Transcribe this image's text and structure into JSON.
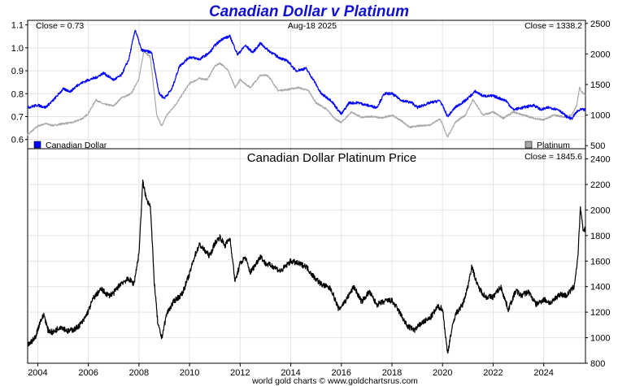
{
  "chart_data": {
    "type": "line",
    "title": "Canadian Dollar v Platinum",
    "date_label": "Aug-18  2025",
    "footer": "world gold charts © www.goldchartsrus.com",
    "colors": {
      "title": "#1010d0",
      "cad": "#0000ff",
      "platinum": "#a8a8a8",
      "ratio": "#000000",
      "grid": "#e4e4e4"
    },
    "x_ticks": [
      "2004",
      "2006",
      "2008",
      "2010",
      "2012",
      "2014",
      "2016",
      "2018",
      "2020",
      "2022",
      "2024"
    ],
    "x_range": [
      2003.6,
      2025.65
    ],
    "top_panel": {
      "close_left": "Close = 0.73",
      "close_right": "Close = 1338.2",
      "left_axis": {
        "range": [
          0.56,
          1.12
        ],
        "ticks": [
          "0.6",
          "0.7",
          "0.8",
          "0.9",
          "1.0",
          "1.1"
        ]
      },
      "right_axis": {
        "range": [
          450,
          2550
        ],
        "ticks": [
          "500",
          "1000",
          "1500",
          "2000",
          "2500"
        ]
      },
      "legend_left": "Canadian Dollar",
      "legend_right": "Platinum",
      "series": [
        {
          "name": "Canadian Dollar",
          "axis": "left",
          "points": [
            [
              2003.6,
              0.74
            ],
            [
              2004.0,
              0.75
            ],
            [
              2004.3,
              0.74
            ],
            [
              2004.6,
              0.77
            ],
            [
              2005.0,
              0.82
            ],
            [
              2005.3,
              0.81
            ],
            [
              2005.6,
              0.84
            ],
            [
              2006.0,
              0.86
            ],
            [
              2006.3,
              0.87
            ],
            [
              2006.6,
              0.89
            ],
            [
              2007.0,
              0.86
            ],
            [
              2007.3,
              0.88
            ],
            [
              2007.6,
              0.95
            ],
            [
              2007.85,
              1.08
            ],
            [
              2008.1,
              0.99
            ],
            [
              2008.5,
              0.98
            ],
            [
              2008.8,
              0.8
            ],
            [
              2009.0,
              0.78
            ],
            [
              2009.3,
              0.82
            ],
            [
              2009.6,
              0.92
            ],
            [
              2010.0,
              0.96
            ],
            [
              2010.4,
              0.95
            ],
            [
              2010.8,
              0.98
            ],
            [
              2011.0,
              1.01
            ],
            [
              2011.3,
              1.04
            ],
            [
              2011.6,
              1.05
            ],
            [
              2011.9,
              0.97
            ],
            [
              2012.2,
              1.01
            ],
            [
              2012.5,
              0.98
            ],
            [
              2012.8,
              1.02
            ],
            [
              2013.1,
              0.99
            ],
            [
              2013.5,
              0.96
            ],
            [
              2013.9,
              0.94
            ],
            [
              2014.2,
              0.9
            ],
            [
              2014.6,
              0.91
            ],
            [
              2014.9,
              0.86
            ],
            [
              2015.2,
              0.8
            ],
            [
              2015.6,
              0.77
            ],
            [
              2016.0,
              0.71
            ],
            [
              2016.3,
              0.76
            ],
            [
              2016.7,
              0.76
            ],
            [
              2017.0,
              0.75
            ],
            [
              2017.4,
              0.74
            ],
            [
              2017.7,
              0.8
            ],
            [
              2018.0,
              0.8
            ],
            [
              2018.4,
              0.77
            ],
            [
              2018.8,
              0.76
            ],
            [
              2019.0,
              0.74
            ],
            [
              2019.5,
              0.76
            ],
            [
              2019.9,
              0.77
            ],
            [
              2020.2,
              0.7
            ],
            [
              2020.5,
              0.74
            ],
            [
              2020.9,
              0.77
            ],
            [
              2021.3,
              0.81
            ],
            [
              2021.6,
              0.79
            ],
            [
              2022.0,
              0.79
            ],
            [
              2022.5,
              0.77
            ],
            [
              2022.8,
              0.73
            ],
            [
              2023.2,
              0.74
            ],
            [
              2023.6,
              0.75
            ],
            [
              2023.9,
              0.73
            ],
            [
              2024.2,
              0.74
            ],
            [
              2024.6,
              0.73
            ],
            [
              2024.9,
              0.7
            ],
            [
              2025.1,
              0.69
            ],
            [
              2025.3,
              0.72
            ],
            [
              2025.45,
              0.73
            ],
            [
              2025.65,
              0.73
            ]
          ]
        },
        {
          "name": "Platinum",
          "axis": "right",
          "points": [
            [
              2003.6,
              680
            ],
            [
              2004.0,
              820
            ],
            [
              2004.3,
              860
            ],
            [
              2004.6,
              830
            ],
            [
              2005.0,
              860
            ],
            [
              2005.4,
              880
            ],
            [
              2005.8,
              950
            ],
            [
              2006.0,
              1030
            ],
            [
              2006.3,
              1250
            ],
            [
              2006.6,
              1180
            ],
            [
              2007.0,
              1150
            ],
            [
              2007.3,
              1280
            ],
            [
              2007.7,
              1350
            ],
            [
              2008.0,
              1600
            ],
            [
              2008.2,
              2050
            ],
            [
              2008.45,
              1950
            ],
            [
              2008.7,
              1000
            ],
            [
              2008.9,
              820
            ],
            [
              2009.1,
              1000
            ],
            [
              2009.5,
              1200
            ],
            [
              2010.0,
              1520
            ],
            [
              2010.4,
              1600
            ],
            [
              2010.7,
              1580
            ],
            [
              2011.0,
              1800
            ],
            [
              2011.2,
              1850
            ],
            [
              2011.5,
              1750
            ],
            [
              2011.8,
              1450
            ],
            [
              2012.0,
              1580
            ],
            [
              2012.4,
              1450
            ],
            [
              2012.8,
              1650
            ],
            [
              2013.1,
              1650
            ],
            [
              2013.5,
              1400
            ],
            [
              2013.9,
              1420
            ],
            [
              2014.3,
              1450
            ],
            [
              2014.7,
              1400
            ],
            [
              2015.0,
              1200
            ],
            [
              2015.4,
              1100
            ],
            [
              2015.8,
              920
            ],
            [
              2016.0,
              880
            ],
            [
              2016.4,
              1050
            ],
            [
              2016.8,
              960
            ],
            [
              2017.2,
              980
            ],
            [
              2017.6,
              950
            ],
            [
              2018.0,
              1000
            ],
            [
              2018.4,
              900
            ],
            [
              2018.7,
              800
            ],
            [
              2019.0,
              820
            ],
            [
              2019.5,
              840
            ],
            [
              2019.9,
              940
            ],
            [
              2020.2,
              640
            ],
            [
              2020.5,
              880
            ],
            [
              2020.9,
              1000
            ],
            [
              2021.2,
              1250
            ],
            [
              2021.6,
              1000
            ],
            [
              2022.0,
              1050
            ],
            [
              2022.4,
              950
            ],
            [
              2022.8,
              1050
            ],
            [
              2023.2,
              1000
            ],
            [
              2023.6,
              950
            ],
            [
              2024.0,
              920
            ],
            [
              2024.4,
              1000
            ],
            [
              2024.8,
              970
            ],
            [
              2025.1,
              1000
            ],
            [
              2025.3,
              1150
            ],
            [
              2025.42,
              1450
            ],
            [
              2025.5,
              1380
            ],
            [
              2025.65,
              1338
            ]
          ]
        }
      ]
    },
    "bottom_panel": {
      "title": "Canadian Dollar Platinum Price",
      "close_right": "Close = 1845.6",
      "right_axis": {
        "range": [
          800,
          2480
        ],
        "ticks": [
          "800",
          "1000",
          "1200",
          "1400",
          "1600",
          "1800",
          "2000",
          "2200",
          "2400"
        ]
      },
      "series": [
        {
          "name": "Canadian Dollar Platinum Price",
          "axis": "right",
          "points": [
            [
              2003.6,
              940
            ],
            [
              2003.9,
              1000
            ],
            [
              2004.1,
              1130
            ],
            [
              2004.25,
              1180
            ],
            [
              2004.4,
              1060
            ],
            [
              2004.6,
              1040
            ],
            [
              2004.9,
              1090
            ],
            [
              2005.2,
              1050
            ],
            [
              2005.5,
              1070
            ],
            [
              2005.8,
              1130
            ],
            [
              2006.0,
              1210
            ],
            [
              2006.2,
              1310
            ],
            [
              2006.5,
              1380
            ],
            [
              2006.8,
              1330
            ],
            [
              2007.0,
              1350
            ],
            [
              2007.3,
              1430
            ],
            [
              2007.6,
              1460
            ],
            [
              2007.8,
              1420
            ],
            [
              2008.0,
              1660
            ],
            [
              2008.15,
              2220
            ],
            [
              2008.3,
              2080
            ],
            [
              2008.45,
              2040
            ],
            [
              2008.6,
              1450
            ],
            [
              2008.75,
              1100
            ],
            [
              2008.9,
              1000
            ],
            [
              2009.1,
              1190
            ],
            [
              2009.4,
              1290
            ],
            [
              2009.7,
              1340
            ],
            [
              2010.0,
              1500
            ],
            [
              2010.2,
              1640
            ],
            [
              2010.4,
              1730
            ],
            [
              2010.6,
              1680
            ],
            [
              2010.8,
              1640
            ],
            [
              2011.0,
              1740
            ],
            [
              2011.2,
              1790
            ],
            [
              2011.4,
              1720
            ],
            [
              2011.6,
              1780
            ],
            [
              2011.8,
              1440
            ],
            [
              2012.0,
              1580
            ],
            [
              2012.2,
              1630
            ],
            [
              2012.4,
              1510
            ],
            [
              2012.6,
              1570
            ],
            [
              2012.8,
              1640
            ],
            [
              2013.0,
              1580
            ],
            [
              2013.3,
              1560
            ],
            [
              2013.6,
              1520
            ],
            [
              2014.0,
              1600
            ],
            [
              2014.3,
              1580
            ],
            [
              2014.6,
              1560
            ],
            [
              2014.9,
              1480
            ],
            [
              2015.2,
              1420
            ],
            [
              2015.6,
              1380
            ],
            [
              2015.9,
              1220
            ],
            [
              2016.2,
              1300
            ],
            [
              2016.5,
              1400
            ],
            [
              2016.8,
              1280
            ],
            [
              2017.1,
              1360
            ],
            [
              2017.4,
              1260
            ],
            [
              2017.8,
              1290
            ],
            [
              2018.0,
              1290
            ],
            [
              2018.3,
              1200
            ],
            [
              2018.6,
              1090
            ],
            [
              2018.9,
              1060
            ],
            [
              2019.2,
              1120
            ],
            [
              2019.5,
              1150
            ],
            [
              2019.8,
              1240
            ],
            [
              2020.0,
              1230
            ],
            [
              2020.2,
              870
            ],
            [
              2020.3,
              1000
            ],
            [
              2020.5,
              1180
            ],
            [
              2020.8,
              1260
            ],
            [
              2021.0,
              1400
            ],
            [
              2021.15,
              1560
            ],
            [
              2021.4,
              1400
            ],
            [
              2021.7,
              1320
            ],
            [
              2022.0,
              1320
            ],
            [
              2022.3,
              1400
            ],
            [
              2022.6,
              1220
            ],
            [
              2022.9,
              1370
            ],
            [
              2023.1,
              1330
            ],
            [
              2023.4,
              1360
            ],
            [
              2023.7,
              1260
            ],
            [
              2024.0,
              1300
            ],
            [
              2024.3,
              1270
            ],
            [
              2024.6,
              1340
            ],
            [
              2024.9,
              1330
            ],
            [
              2025.2,
              1400
            ],
            [
              2025.35,
              1630
            ],
            [
              2025.45,
              2010
            ],
            [
              2025.55,
              1850
            ],
            [
              2025.65,
              1846
            ]
          ]
        }
      ]
    }
  }
}
